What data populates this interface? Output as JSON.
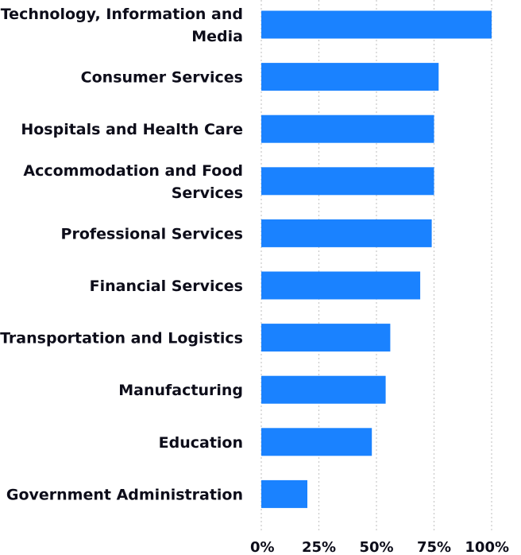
{
  "chart_data": {
    "type": "bar",
    "orientation": "horizontal",
    "title": "",
    "xlabel": "",
    "ylabel": "",
    "categories": [
      "Technology, Information and Media",
      "Consumer Services",
      "Hospitals and Health Care",
      "Accommodation and Food Services",
      "Professional Services",
      "Financial Services",
      "Transportation and Logistics",
      "Manufacturing",
      "Education",
      "Government Administration"
    ],
    "category_lines": [
      [
        "Technology, Information and",
        "Media"
      ],
      [
        "Consumer Services"
      ],
      [
        "Hospitals and Health Care"
      ],
      [
        "Accommodation and Food",
        "Services"
      ],
      [
        "Professional Services"
      ],
      [
        "Financial Services"
      ],
      [
        "Transportation and Logistics"
      ],
      [
        "Manufacturing"
      ],
      [
        "Education"
      ],
      [
        "Government Administration"
      ]
    ],
    "values": [
      100,
      77,
      75,
      75,
      74,
      69,
      56,
      54,
      48,
      20
    ],
    "xlim": [
      0,
      100
    ],
    "xticks": [
      0,
      25,
      50,
      75,
      100
    ],
    "xtick_labels": [
      "0%",
      "25%",
      "50%",
      "75%",
      "100%"
    ],
    "grid": "vertical dotted",
    "bar_color": "#1a82ff"
  }
}
